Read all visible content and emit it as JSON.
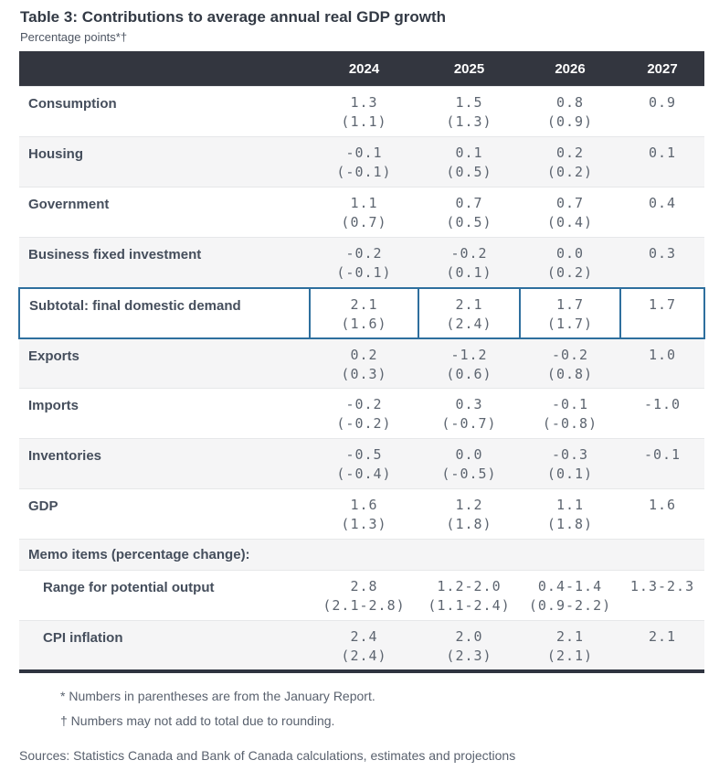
{
  "title": "Table 3: Contributions to average annual real GDP growth",
  "subtitle": "Percentage points*†",
  "columns": [
    "2024",
    "2025",
    "2026",
    "2027"
  ],
  "rows": [
    {
      "label": "Consumption",
      "type": "data",
      "indent": false,
      "cells": [
        {
          "v": "1.3",
          "p": "(1.1)"
        },
        {
          "v": "1.5",
          "p": "(1.3)"
        },
        {
          "v": "0.8",
          "p": "(0.9)"
        },
        {
          "v": "0.9",
          "p": ""
        }
      ]
    },
    {
      "label": "Housing",
      "type": "data",
      "indent": false,
      "cells": [
        {
          "v": "-0.1",
          "p": "(-0.1)"
        },
        {
          "v": "0.1",
          "p": "(0.5)"
        },
        {
          "v": "0.2",
          "p": "(0.2)"
        },
        {
          "v": "0.1",
          "p": ""
        }
      ]
    },
    {
      "label": "Government",
      "type": "data",
      "indent": false,
      "cells": [
        {
          "v": "1.1",
          "p": "(0.7)"
        },
        {
          "v": "0.7",
          "p": "(0.5)"
        },
        {
          "v": "0.7",
          "p": "(0.4)"
        },
        {
          "v": "0.4",
          "p": ""
        }
      ]
    },
    {
      "label": "Business fixed investment",
      "type": "data",
      "indent": false,
      "cells": [
        {
          "v": "-0.2",
          "p": "(-0.1)"
        },
        {
          "v": "-0.2",
          "p": "(0.1)"
        },
        {
          "v": "0.0",
          "p": "(0.2)"
        },
        {
          "v": "0.3",
          "p": ""
        }
      ]
    },
    {
      "label": "Subtotal: final domestic demand",
      "type": "highlight",
      "indent": false,
      "cells": [
        {
          "v": "2.1",
          "p": "(1.6)"
        },
        {
          "v": "2.1",
          "p": "(2.4)"
        },
        {
          "v": "1.7",
          "p": "(1.7)"
        },
        {
          "v": "1.7",
          "p": ""
        }
      ]
    },
    {
      "label": "Exports",
      "type": "data",
      "indent": false,
      "cells": [
        {
          "v": "0.2",
          "p": "(0.3)"
        },
        {
          "v": "-1.2",
          "p": "(0.6)"
        },
        {
          "v": "-0.2",
          "p": "(0.8)"
        },
        {
          "v": "1.0",
          "p": ""
        }
      ]
    },
    {
      "label": "Imports",
      "type": "data",
      "indent": false,
      "cells": [
        {
          "v": "-0.2",
          "p": "(-0.2)"
        },
        {
          "v": "0.3",
          "p": "(-0.7)"
        },
        {
          "v": "-0.1",
          "p": "(-0.8)"
        },
        {
          "v": "-1.0",
          "p": ""
        }
      ]
    },
    {
      "label": "Inventories",
      "type": "data",
      "indent": false,
      "cells": [
        {
          "v": "-0.5",
          "p": "(-0.4)"
        },
        {
          "v": "0.0",
          "p": "(-0.5)"
        },
        {
          "v": "-0.3",
          "p": "(0.1)"
        },
        {
          "v": "-0.1",
          "p": ""
        }
      ]
    },
    {
      "label": "GDP",
      "type": "data",
      "indent": false,
      "cells": [
        {
          "v": "1.6",
          "p": "(1.3)"
        },
        {
          "v": "1.2",
          "p": "(1.8)"
        },
        {
          "v": "1.1",
          "p": "(1.8)"
        },
        {
          "v": "1.6",
          "p": ""
        }
      ]
    },
    {
      "label": "Memo items (percentage change):",
      "type": "section",
      "indent": false,
      "cells": []
    },
    {
      "label": "Range for potential output",
      "type": "data",
      "indent": true,
      "cells": [
        {
          "v": "2.8",
          "p": "(2.1-2.8)"
        },
        {
          "v": "1.2-2.0",
          "p": "(1.1-2.4)"
        },
        {
          "v": "0.4-1.4",
          "p": "(0.9-2.2)"
        },
        {
          "v": "1.3-2.3",
          "p": ""
        }
      ]
    },
    {
      "label": "CPI inflation",
      "type": "data",
      "indent": true,
      "cells": [
        {
          "v": "2.4",
          "p": "(2.4)"
        },
        {
          "v": "2.0",
          "p": "(2.3)"
        },
        {
          "v": "2.1",
          "p": "(2.1)"
        },
        {
          "v": "2.1",
          "p": ""
        }
      ]
    }
  ],
  "footnotes": [
    "* Numbers in parentheses are from the January Report.",
    "† Numbers may not add to total due to rounding."
  ],
  "sources": "Sources: Statistics Canada and Bank of Canada calculations, estimates and projections",
  "colors": {
    "header_bg": "#33363f",
    "highlight_border": "#2e6f9e",
    "alt_row_bg": "#f5f5f6",
    "label_text": "#454e5c",
    "number_text": "#5d6570",
    "bottom_bar": "#2f3440"
  }
}
